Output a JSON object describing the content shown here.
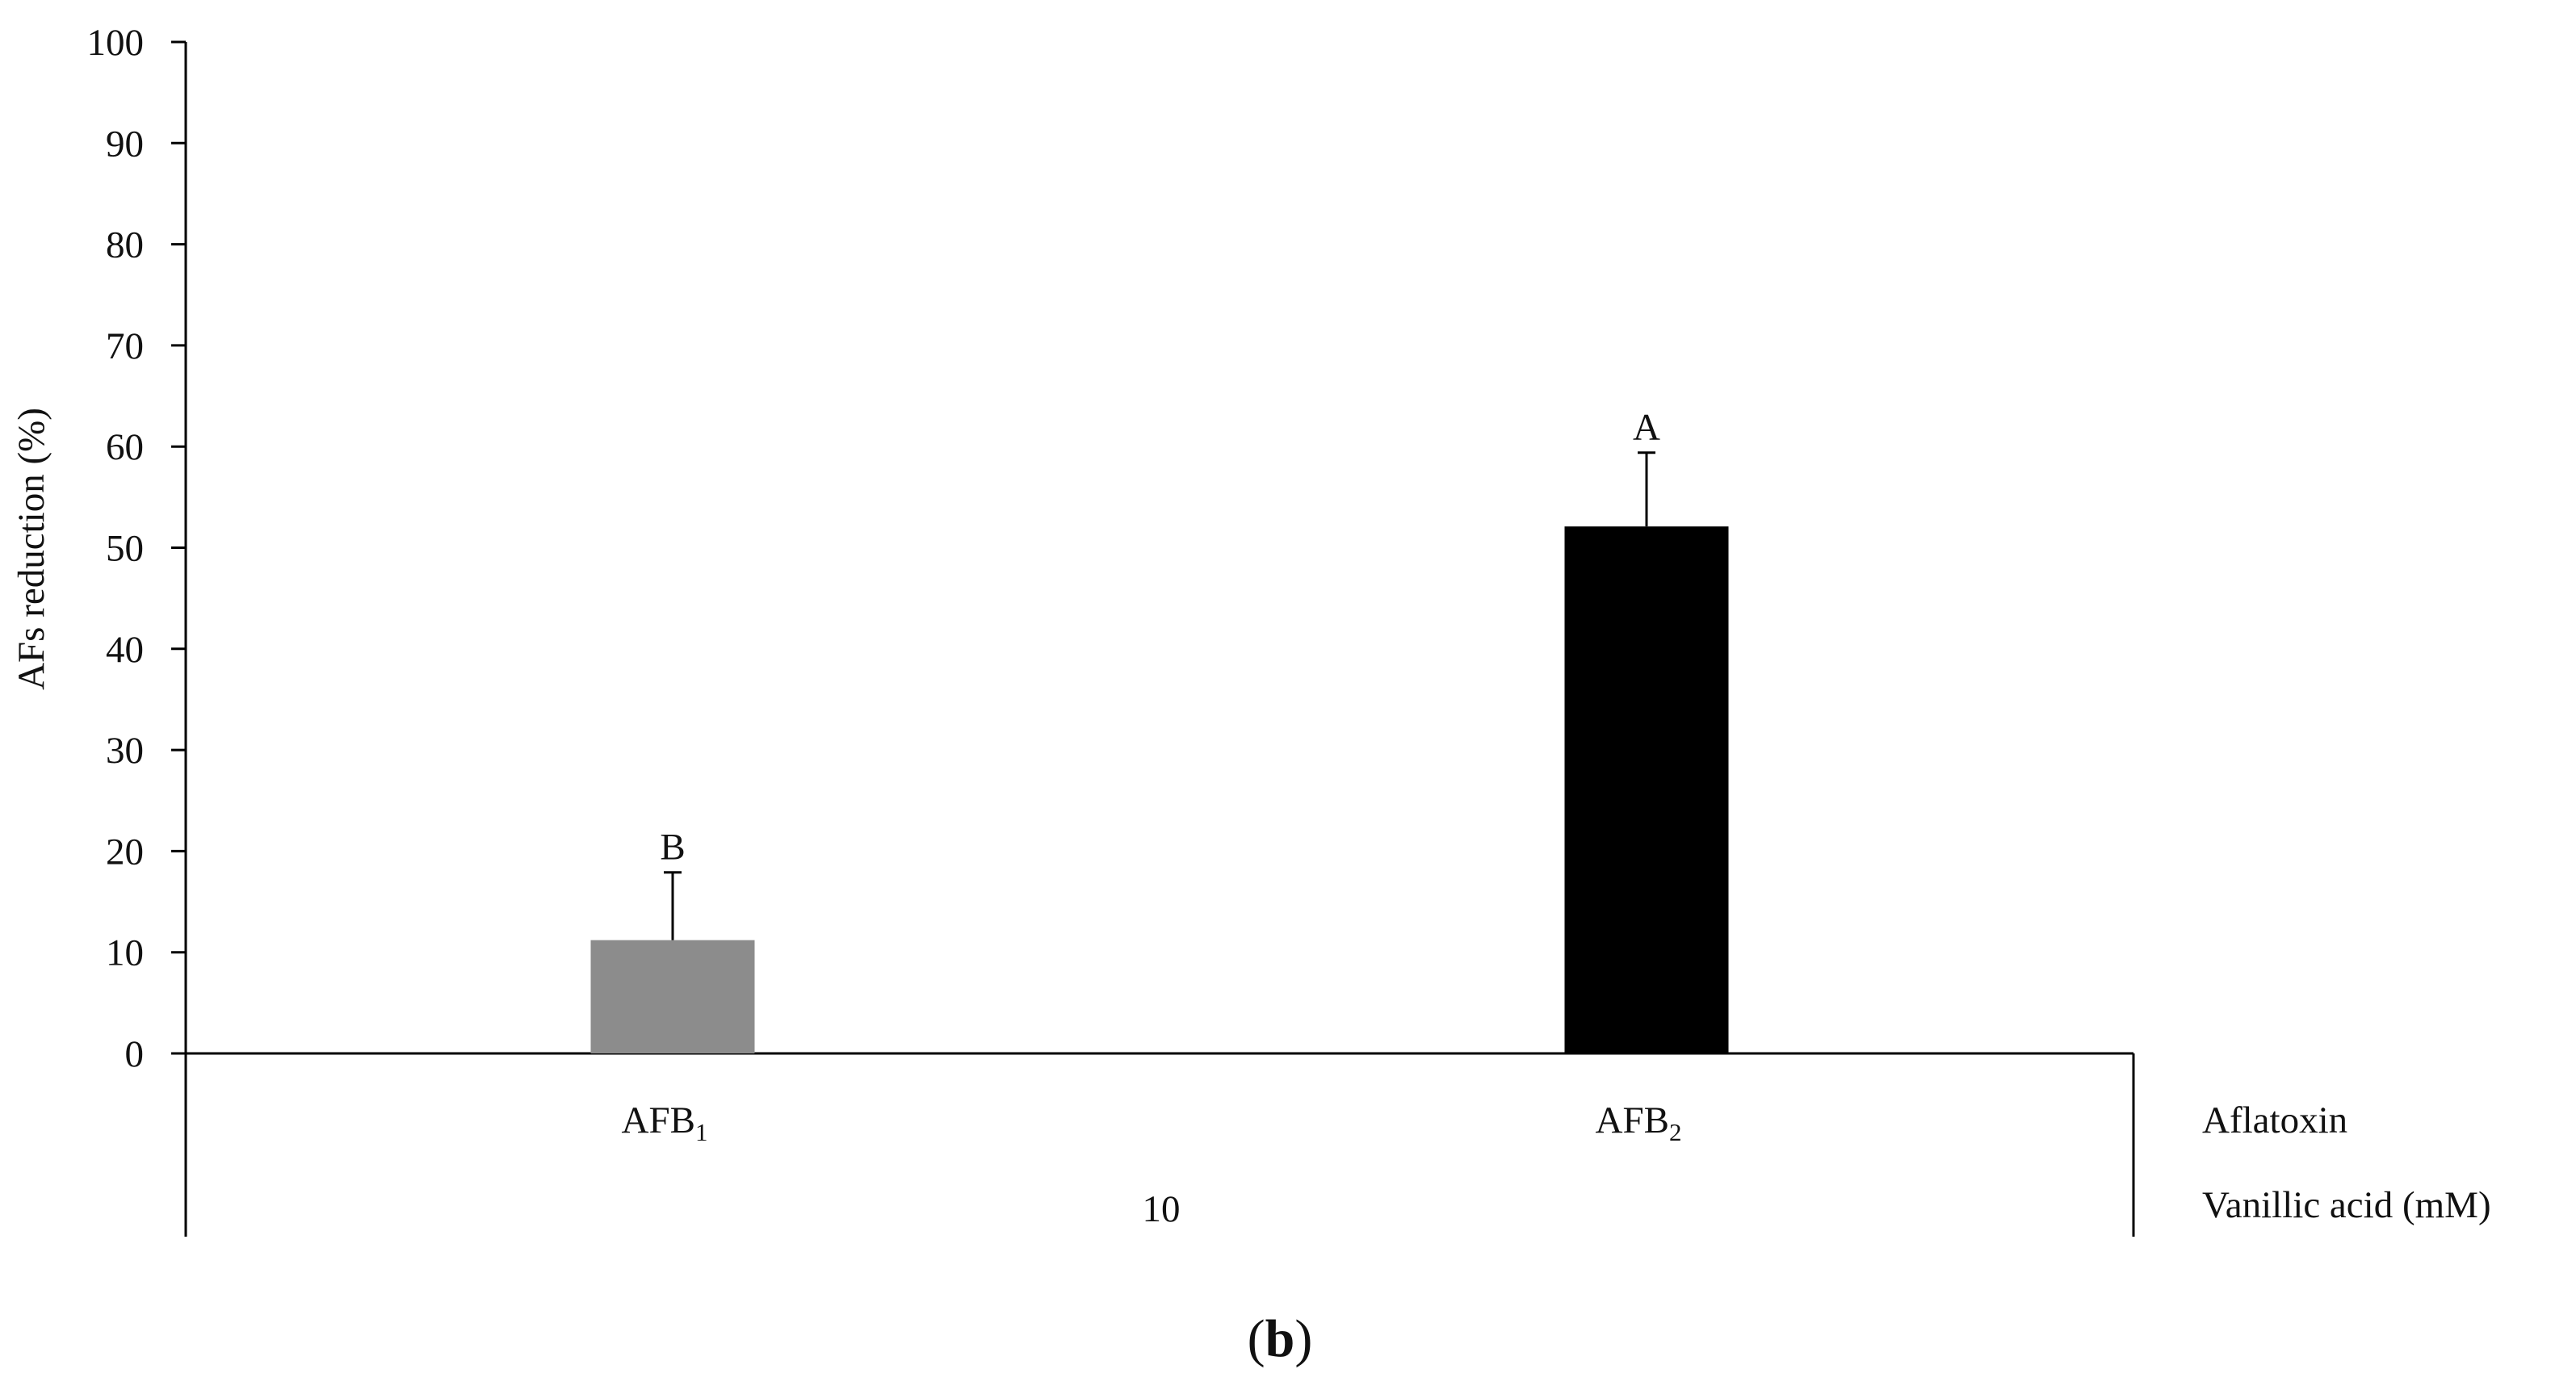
{
  "chart_data": {
    "type": "bar",
    "categories": [
      {
        "base": "AFB",
        "sub": "1"
      },
      {
        "base": "AFB",
        "sub": "2"
      }
    ],
    "values": [
      11.2,
      52.1
    ],
    "error_upper": [
      17.9,
      59.4
    ],
    "significance": [
      "B",
      "A"
    ],
    "bar_colors": [
      "#8c8c8c",
      "#000000"
    ],
    "ylabel": "AFs reduction (%)",
    "ylim": [
      0,
      100
    ],
    "yticks": [
      0,
      10,
      20,
      30,
      40,
      50,
      60,
      70,
      80,
      90,
      100
    ],
    "category_axis_label": "Aflatoxin",
    "group_value": "10",
    "group_axis_label": "Vanillic acid (mM)",
    "grid": false
  },
  "panel_label": {
    "open": "(",
    "letter": "b",
    "close": ")"
  }
}
